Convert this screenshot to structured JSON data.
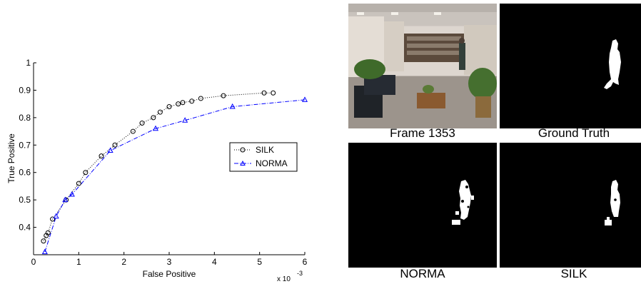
{
  "chart_data": {
    "type": "line",
    "title": "",
    "xlabel": "False Positive",
    "ylabel": "True Positive",
    "x_multiplier_label": "x 10",
    "x_multiplier_exp": "-3",
    "xlim": [
      0,
      6
    ],
    "ylim": [
      0.3,
      1.0
    ],
    "xticks": [
      "0",
      "1",
      "2",
      "3",
      "4",
      "5",
      "6"
    ],
    "yticks": [
      "0.4",
      "0.5",
      "0.6",
      "0.7",
      "0.8",
      "0.9",
      "1"
    ],
    "grid": false,
    "legend_position": "right",
    "series": [
      {
        "name": "SILK",
        "marker": "circle",
        "line_style": "dotted",
        "color": "#000000",
        "x": [
          0.22,
          0.28,
          0.32,
          0.42,
          0.72,
          1.0,
          1.15,
          1.5,
          1.8,
          2.2,
          2.4,
          2.65,
          2.8,
          3.0,
          3.2,
          3.3,
          3.5,
          3.7,
          4.2,
          5.1,
          5.3
        ],
        "y": [
          0.35,
          0.37,
          0.38,
          0.43,
          0.5,
          0.56,
          0.6,
          0.66,
          0.7,
          0.75,
          0.78,
          0.8,
          0.82,
          0.84,
          0.85,
          0.855,
          0.86,
          0.87,
          0.88,
          0.89,
          0.89
        ]
      },
      {
        "name": "NORMA",
        "marker": "triangle",
        "line_style": "dash-dot",
        "color": "#0000ff",
        "x": [
          0.25,
          0.5,
          0.7,
          0.85,
          1.7,
          2.7,
          3.35,
          4.4,
          6.0
        ],
        "y": [
          0.31,
          0.44,
          0.5,
          0.52,
          0.68,
          0.76,
          0.79,
          0.84,
          0.865
        ]
      }
    ]
  },
  "panels": {
    "frame_caption": "Frame 1353",
    "ground_truth_caption": "Ground Truth",
    "norma_caption": "NORMA",
    "silk_caption": "SILK"
  }
}
